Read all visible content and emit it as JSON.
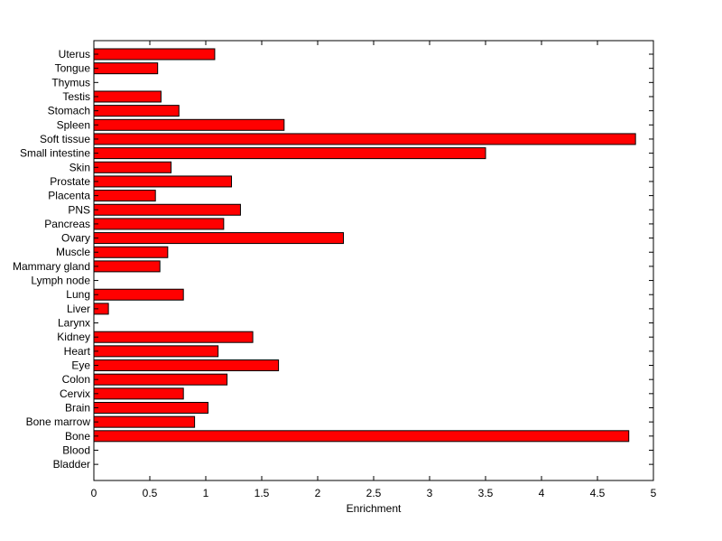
{
  "chart_data": {
    "type": "bar",
    "orientation": "horizontal",
    "categories": [
      "Uterus",
      "Tongue",
      "Thymus",
      "Testis",
      "Stomach",
      "Spleen",
      "Soft tissue",
      "Small intestine",
      "Skin",
      "Prostate",
      "Placenta",
      "PNS",
      "Pancreas",
      "Ovary",
      "Muscle",
      "Mammary gland",
      "Lymph node",
      "Lung",
      "Liver",
      "Larynx",
      "Kidney",
      "Heart",
      "Eye",
      "Colon",
      "Cervix",
      "Brain",
      "Bone marrow",
      "Bone",
      "Blood",
      "Bladder"
    ],
    "values": [
      1.08,
      0.57,
      0,
      0.6,
      0.76,
      1.7,
      4.84,
      3.5,
      0.69,
      1.23,
      0.55,
      1.31,
      1.16,
      2.23,
      0.66,
      0.59,
      0,
      0.8,
      0.13,
      0,
      1.42,
      1.11,
      1.65,
      1.19,
      0.8,
      1.02,
      0.9,
      4.78,
      0,
      0
    ],
    "xlabel": "Enrichment",
    "xlim": [
      0,
      5
    ],
    "xticks": [
      "0",
      "0.5",
      "1",
      "1.5",
      "2",
      "2.5",
      "3",
      "3.5",
      "4",
      "4.5",
      "5"
    ],
    "bar_color": "#ff0000",
    "edge_color": "#000000",
    "grid": false
  }
}
